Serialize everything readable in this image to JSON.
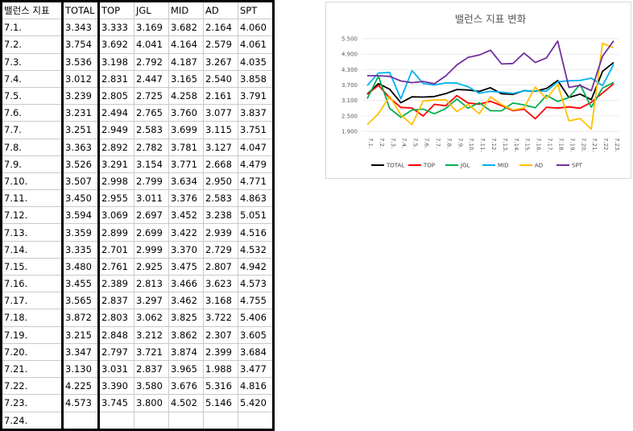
{
  "table": {
    "headers": [
      "밸런스 지표",
      "TOTAL",
      "TOP",
      "JGL",
      "MID",
      "AD",
      "SPT"
    ],
    "rows": [
      [
        "7.1.",
        "3.343",
        "3.333",
        "3.169",
        "3.682",
        "2.164",
        "4.060"
      ],
      [
        "7.2.",
        "3.754",
        "3.692",
        "4.041",
        "4.164",
        "2.579",
        "4.061"
      ],
      [
        "7.3.",
        "3.536",
        "3.198",
        "2.792",
        "4.187",
        "3.267",
        "4.035"
      ],
      [
        "7.4.",
        "3.012",
        "2.831",
        "2.447",
        "3.165",
        "2.540",
        "3.858"
      ],
      [
        "7.5.",
        "3.239",
        "2.805",
        "2.725",
        "4.258",
        "2.161",
        "3.791"
      ],
      [
        "7.6.",
        "3.231",
        "2.494",
        "2.765",
        "3.760",
        "3.077",
        "3.837"
      ],
      [
        "7.7.",
        "3.251",
        "2.949",
        "2.583",
        "3.699",
        "3.115",
        "3.751"
      ],
      [
        "7.8.",
        "3.363",
        "2.892",
        "2.782",
        "3.781",
        "3.127",
        "4.047"
      ],
      [
        "7.9.",
        "3.526",
        "3.291",
        "3.154",
        "3.771",
        "2.668",
        "4.479"
      ],
      [
        "7.10.",
        "3.507",
        "2.998",
        "2.799",
        "3.634",
        "2.950",
        "4.771"
      ],
      [
        "7.11.",
        "3.450",
        "2.955",
        "3.011",
        "3.376",
        "2.583",
        "4.863"
      ],
      [
        "7.12.",
        "3.594",
        "3.069",
        "2.697",
        "3.452",
        "3.238",
        "5.051"
      ],
      [
        "7.13.",
        "3.359",
        "2.899",
        "2.699",
        "3.422",
        "2.939",
        "4.516"
      ],
      [
        "7.14.",
        "3.335",
        "2.701",
        "2.999",
        "3.370",
        "2.729",
        "4.532"
      ],
      [
        "7.15.",
        "3.480",
        "2.761",
        "2.925",
        "3.475",
        "2.807",
        "4.942"
      ],
      [
        "7.16.",
        "3.455",
        "2.389",
        "2.813",
        "3.466",
        "3.623",
        "4.573"
      ],
      [
        "7.17.",
        "3.565",
        "2.837",
        "3.297",
        "3.462",
        "3.168",
        "4.755"
      ],
      [
        "7.18.",
        "3.872",
        "2.803",
        "3.062",
        "3.825",
        "3.722",
        "5.406"
      ],
      [
        "7.19.",
        "3.215",
        "2.848",
        "3.212",
        "3.862",
        "2.307",
        "3.605"
      ],
      [
        "7.20.",
        "3.347",
        "2.797",
        "3.721",
        "3.874",
        "2.399",
        "3.684"
      ],
      [
        "7.21.",
        "3.130",
        "3.031",
        "2.837",
        "3.965",
        "1.988",
        "3.477"
      ],
      [
        "7.22.",
        "4.225",
        "3.390",
        "3.580",
        "3.676",
        "5.316",
        "4.816"
      ],
      [
        "7.23.",
        "4.573",
        "3.745",
        "3.800",
        "4.502",
        "5.146",
        "5.420"
      ],
      [
        "7.24.",
        "",
        "",
        "",
        "",
        "",
        ""
      ]
    ]
  },
  "chart_data": {
    "type": "line",
    "title": "밸런스 지표 변화",
    "x": [
      "7.1.",
      "7.2.",
      "7.3.",
      "7.4.",
      "7.5.",
      "7.6.",
      "7.7.",
      "7.8.",
      "7.9.",
      "7.10.",
      "7.11.",
      "7.12.",
      "7.13.",
      "7.14.",
      "7.15.",
      "7.16.",
      "7.17.",
      "7.18.",
      "7.19.",
      "7.20.",
      "7.21.",
      "7.22.",
      "7.23."
    ],
    "yticks": [
      "1.900",
      "2.500",
      "3.100",
      "3.700",
      "4.300",
      "4.900",
      "5.500"
    ],
    "ylim": [
      1.9,
      5.5
    ],
    "grid": true,
    "legend_position": "bottom",
    "series": [
      {
        "name": "TOTAL",
        "color": "#000000",
        "values": [
          3.343,
          3.754,
          3.536,
          3.012,
          3.239,
          3.231,
          3.251,
          3.363,
          3.526,
          3.507,
          3.45,
          3.594,
          3.359,
          3.335,
          3.48,
          3.455,
          3.565,
          3.872,
          3.215,
          3.347,
          3.13,
          4.225,
          4.573
        ]
      },
      {
        "name": "TOP",
        "color": "#ff0000",
        "values": [
          3.333,
          3.692,
          3.198,
          2.831,
          2.805,
          2.494,
          2.949,
          2.892,
          3.291,
          2.998,
          2.955,
          3.069,
          2.899,
          2.701,
          2.761,
          2.389,
          2.837,
          2.803,
          2.848,
          2.797,
          3.031,
          3.39,
          3.745
        ]
      },
      {
        "name": "JGL",
        "color": "#00b050",
        "values": [
          3.169,
          4.041,
          2.792,
          2.447,
          2.725,
          2.765,
          2.583,
          2.782,
          3.154,
          2.799,
          3.011,
          2.697,
          2.699,
          2.999,
          2.925,
          2.813,
          3.297,
          3.062,
          3.212,
          3.721,
          2.837,
          3.58,
          3.8
        ]
      },
      {
        "name": "MID",
        "color": "#00b0f0",
        "values": [
          3.682,
          4.164,
          4.187,
          3.165,
          4.258,
          3.76,
          3.699,
          3.781,
          3.771,
          3.634,
          3.376,
          3.452,
          3.422,
          3.37,
          3.475,
          3.466,
          3.462,
          3.825,
          3.862,
          3.874,
          3.965,
          3.676,
          4.502
        ]
      },
      {
        "name": "AD",
        "color": "#ffc000",
        "values": [
          2.164,
          2.579,
          3.267,
          2.54,
          2.161,
          3.077,
          3.115,
          3.127,
          2.668,
          2.95,
          2.583,
          3.238,
          2.939,
          2.729,
          2.807,
          3.623,
          3.168,
          3.722,
          2.307,
          2.399,
          1.988,
          5.316,
          5.146
        ]
      },
      {
        "name": "SPT",
        "color": "#7030a0",
        "values": [
          4.06,
          4.061,
          4.035,
          3.858,
          3.791,
          3.837,
          3.751,
          4.047,
          4.479,
          4.771,
          4.863,
          5.051,
          4.516,
          4.532,
          4.942,
          4.573,
          4.755,
          5.406,
          3.605,
          3.684,
          3.477,
          4.816,
          5.42
        ]
      }
    ]
  }
}
